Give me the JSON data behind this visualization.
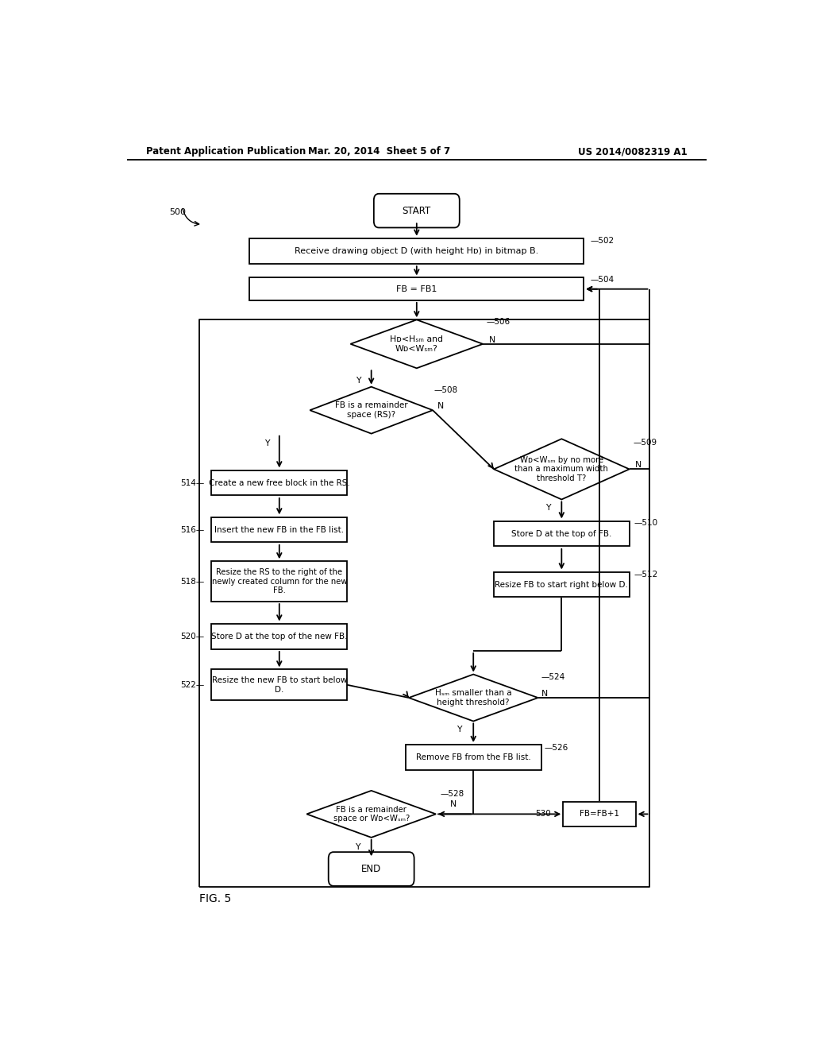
{
  "bg_color": "#ffffff",
  "lc": "#000000",
  "header_left": "Patent Application Publication",
  "header_mid": "Mar. 20, 2014  Sheet 5 of 7",
  "header_right": "US 2014/0082319 A1",
  "fig_label": "FIG. 5",
  "fig_number": "500"
}
